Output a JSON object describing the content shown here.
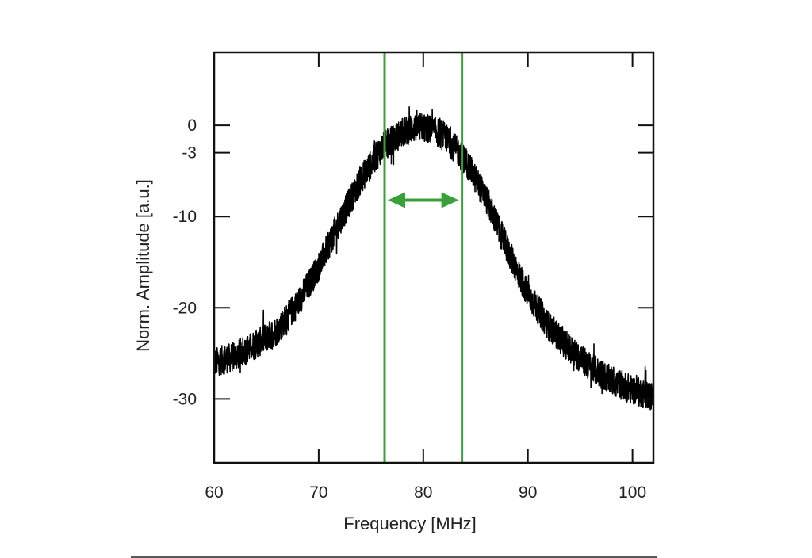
{
  "chart_data": {
    "type": "line",
    "title": "",
    "xlabel": "Frequency [MHz]",
    "ylabel": "Norm. Amplitude [a.u.]",
    "xlim": [
      60,
      102
    ],
    "ylim": [
      -37,
      8
    ],
    "x_ticks": [
      60,
      70,
      80,
      90,
      100
    ],
    "y_ticks": [
      0,
      -3,
      -10,
      -20,
      -30
    ],
    "grid": false,
    "legend": "none",
    "series": [
      {
        "color": "#000000",
        "noisy": true,
        "x": [
          60,
          62,
          64,
          66,
          68,
          70,
          72,
          74,
          76,
          78,
          79,
          80,
          81,
          82,
          84,
          86,
          88,
          90,
          92,
          94,
          96,
          98,
          100,
          102
        ],
        "y": [
          -26,
          -25.3,
          -24,
          -22.5,
          -19.5,
          -15.5,
          -10.5,
          -6,
          -2.5,
          -0.8,
          -0.3,
          -0.2,
          -0.6,
          -1.2,
          -3.8,
          -8,
          -13.5,
          -18.5,
          -22,
          -24.5,
          -26.5,
          -28,
          -29,
          -29.8
        ]
      }
    ],
    "annotations": {
      "color": "#3aa03a",
      "bandwidth_lines_x": [
        76.3,
        83.7
      ],
      "arrow_y": -8.2
    }
  }
}
